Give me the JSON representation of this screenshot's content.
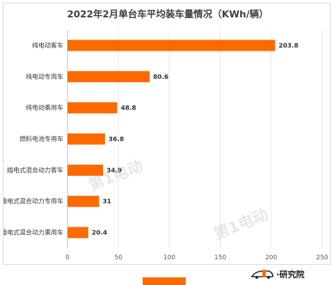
{
  "chart_data": {
    "type": "bar",
    "orientation": "horizontal",
    "title": "2022年2月单台车平均装车量情况（KWh/辆）",
    "categories": [
      "纯电动客车",
      "纯电动专用车",
      "纯电动乘用车",
      "燃料电池专用车",
      "插电式混合动力客车",
      "插电式混合动力专用车",
      "插电式混合动力乘用车"
    ],
    "values": [
      203.8,
      80.6,
      48.8,
      36.8,
      34.9,
      31,
      20.4
    ],
    "value_labels": [
      "203.8",
      "80.6",
      "48.8",
      "36.8",
      "34.9",
      "31",
      "20.4"
    ],
    "xlim": [
      0,
      250
    ],
    "xticks": [
      0,
      50,
      100,
      150,
      200,
      250
    ],
    "grid": true,
    "bar_color": "#FF6A00",
    "legend_placement": "bottom"
  },
  "brand": {
    "text": "·研究院",
    "color": "#FF6A00"
  }
}
